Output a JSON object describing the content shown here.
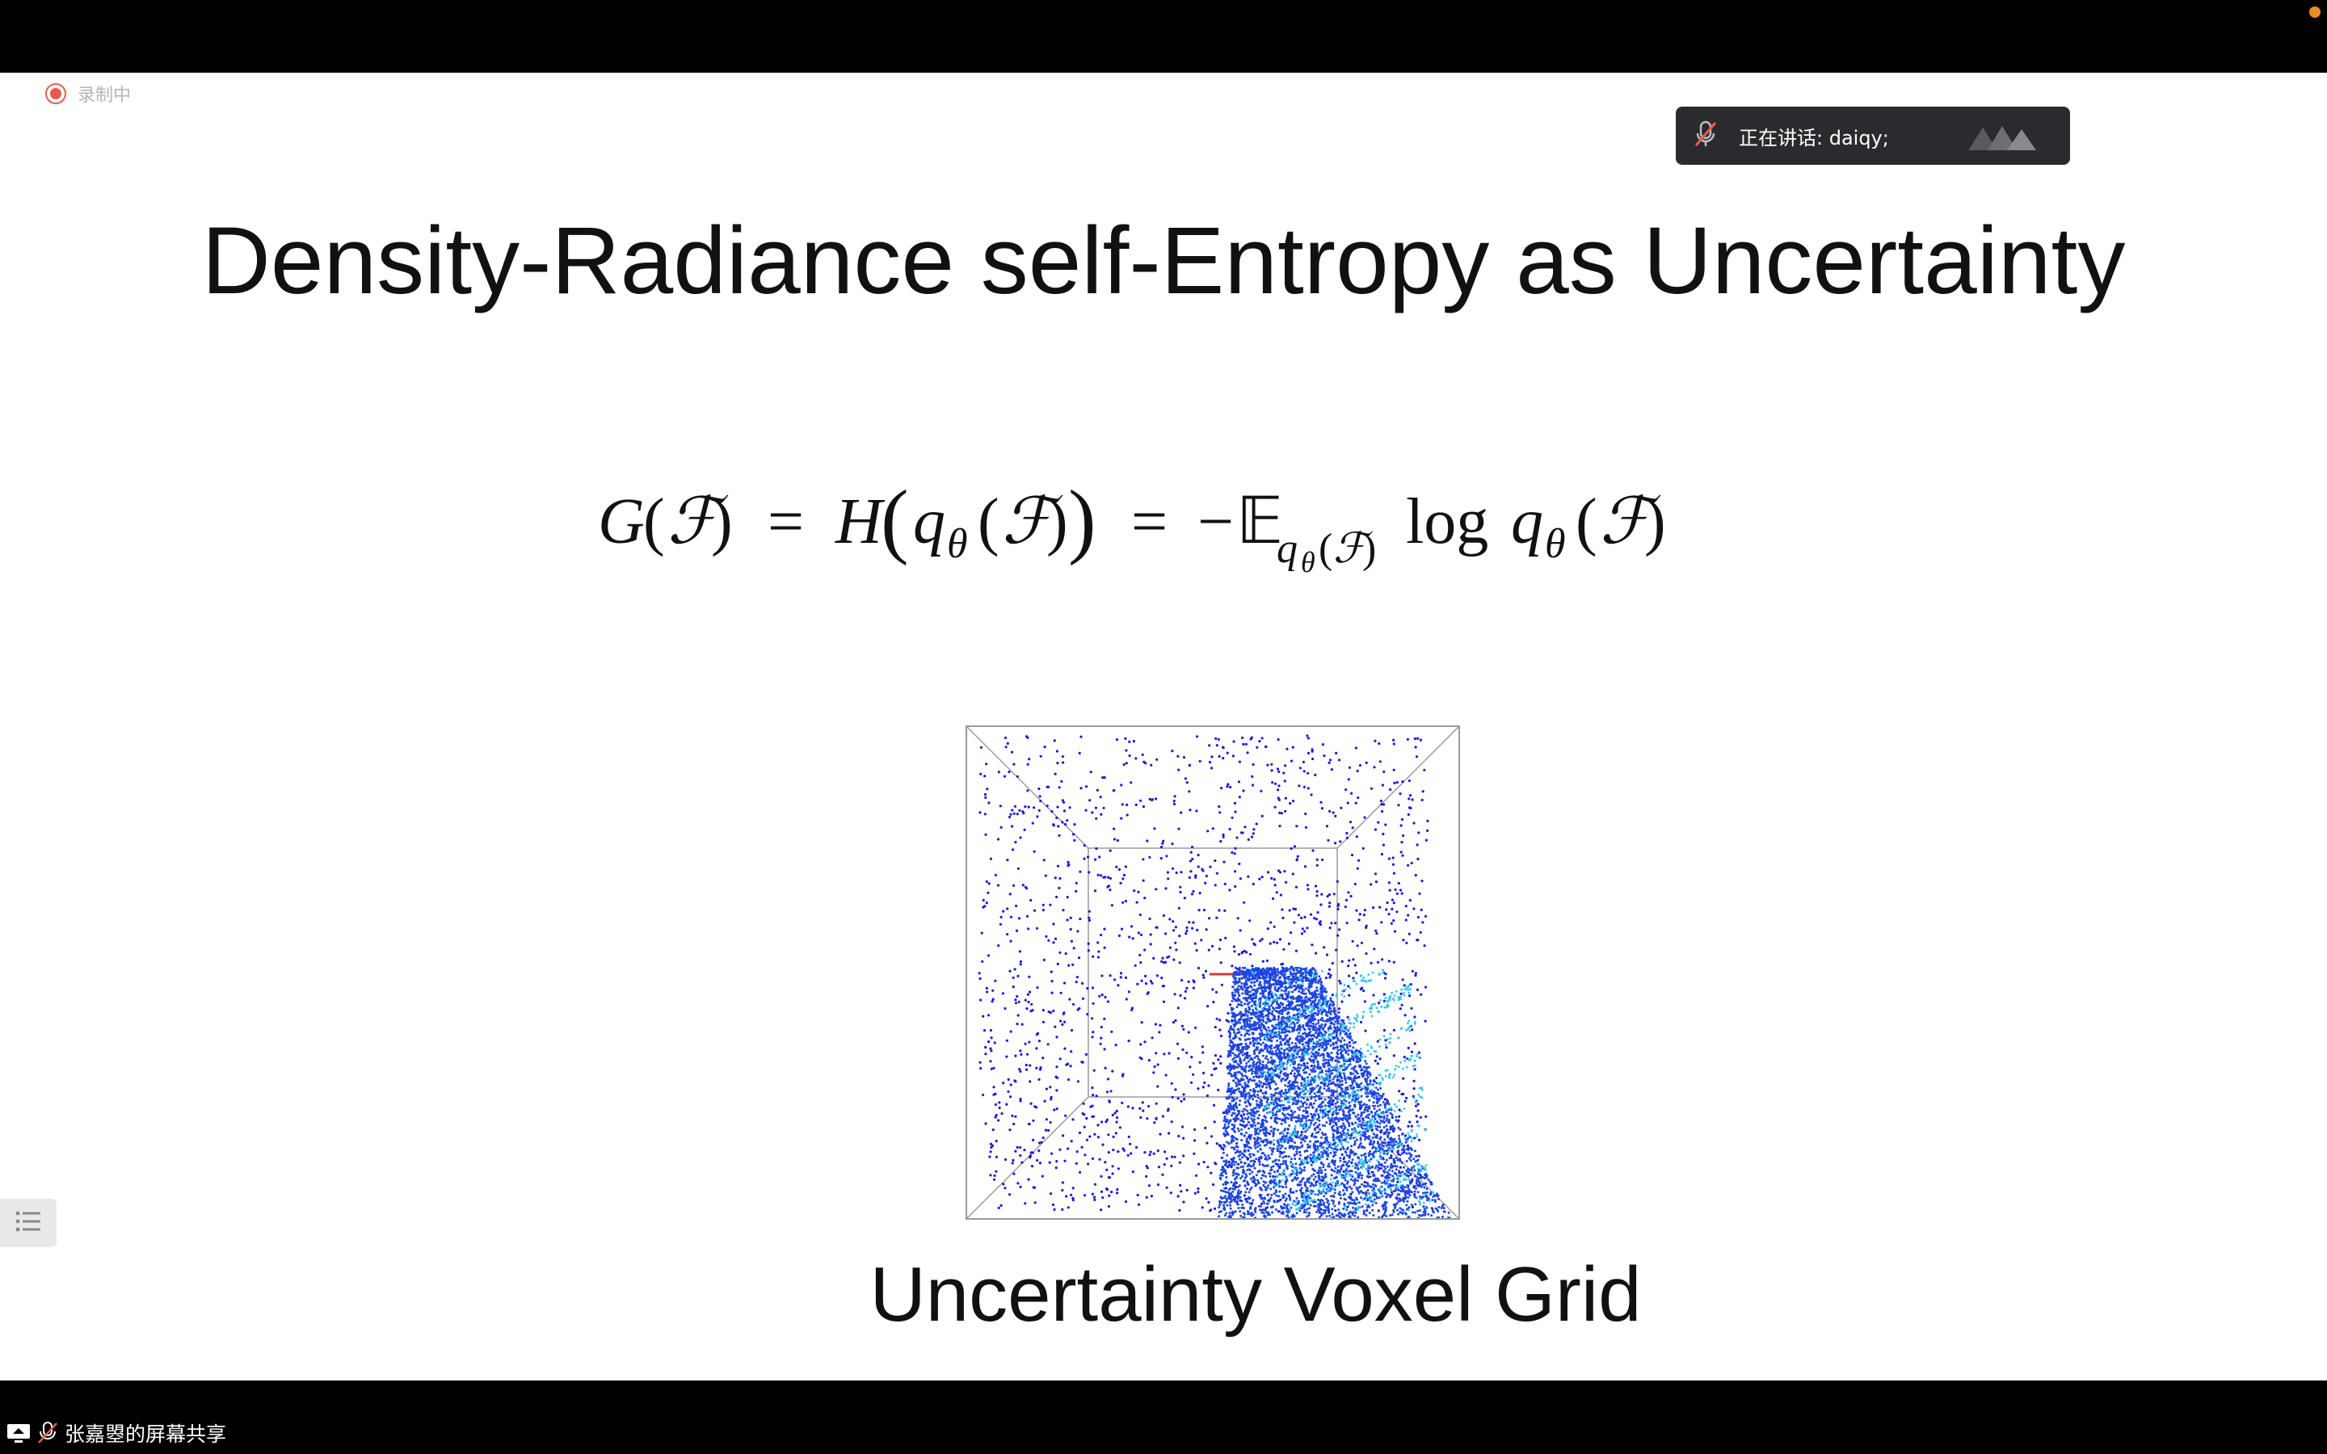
{
  "recording": {
    "label": "录制中"
  },
  "speaker": {
    "text": "正在讲话: daiqy;"
  },
  "slide": {
    "title": "Density-Radiance self-Entropy as Uncertainty",
    "formula_latex": "G(\\mathcal{F}) = H(q_\\theta(\\mathcal{F})) = -\\mathbb{E}_{q_\\theta(\\mathcal{F})} \\log q_\\theta(\\mathcal{F})",
    "figure_caption": "Uncertainty Voxel Grid"
  },
  "share": {
    "label": "张嘉曌的屏幕共享"
  },
  "colors": {
    "bars": "#000000",
    "point_sparse": "#1a1ad6",
    "point_dense": "#1e46e0",
    "point_highlight": "#33c6f0",
    "record": "#e35c52"
  },
  "icons": [
    "record-icon",
    "mic-muted-icon",
    "meeting-logo-icon",
    "list-icon",
    "screen-share-icon"
  ]
}
